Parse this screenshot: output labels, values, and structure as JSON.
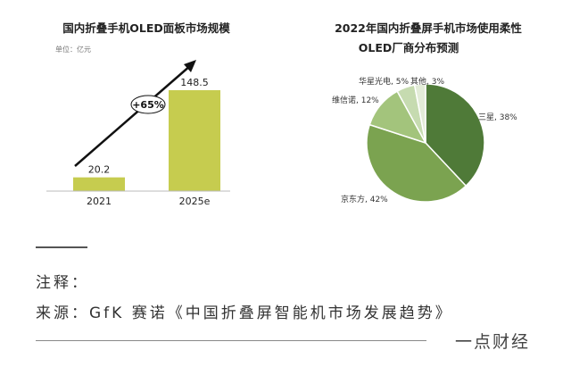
{
  "chart_data": [
    {
      "type": "bar",
      "title": "国内折叠手机OLED面板市场规模",
      "unit": "单位：亿元",
      "categories": [
        "2021",
        "2025e"
      ],
      "values": [
        20.2,
        148.5
      ],
      "value_labels": [
        "20.2",
        "148.5"
      ],
      "annotation": "+65%",
      "colors": {
        "bar": "#c6cc4f",
        "arrow": "#111111"
      }
    },
    {
      "type": "pie",
      "title_line1": "2022年国内折叠屏手机市场使用柔性",
      "title_line2": "OLED厂商分布预测",
      "slices": [
        {
          "label": "三星, 38%",
          "value": 38,
          "color": "#4f7a38"
        },
        {
          "label": "京东方, 42%",
          "value": 42,
          "color": "#7ba350"
        },
        {
          "label": "维信诺, 12%",
          "value": 12,
          "color": "#a3c47c"
        },
        {
          "label": "华星光电, 5%",
          "value": 5,
          "color": "#c6dbb0"
        },
        {
          "label": "其他, 3%",
          "value": 3,
          "color": "#e3ecd8"
        }
      ]
    }
  ],
  "notes": {
    "label": "注释：",
    "source": "来源：GfK 赛诺《中国折叠屏智能机市场发展趋势》"
  },
  "brand": "一点财经"
}
